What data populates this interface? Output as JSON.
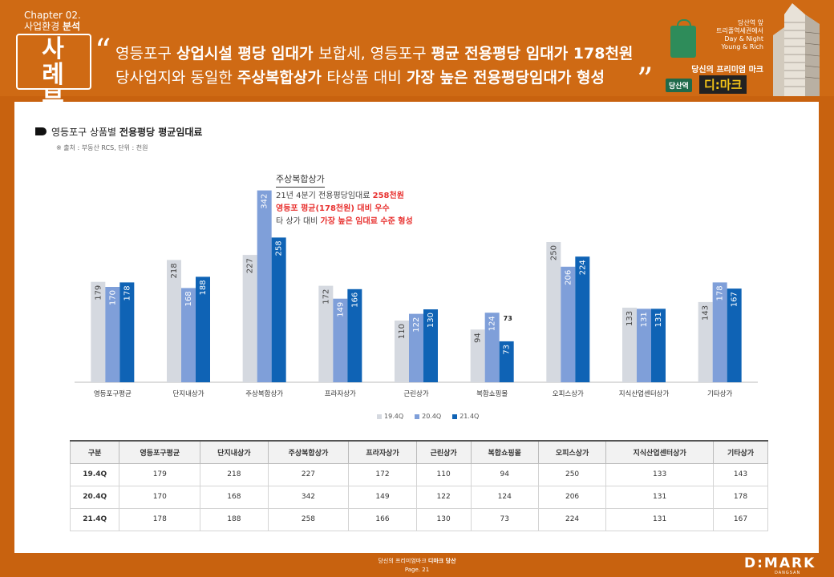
{
  "header": {
    "chapter": "Chapter 02.",
    "chapter_sub_prefix": "사업환경 ",
    "chapter_sub_bold": "분석",
    "case_label_1": "사 례",
    "case_label_2": "분 석",
    "headline": {
      "line1": [
        {
          "t": "영등포구 ",
          "b": false
        },
        {
          "t": "상업시설 평당 임대가 ",
          "b": true
        },
        {
          "t": "보합세, 영등포구 ",
          "b": false
        },
        {
          "t": "평균 전용평당 임대가 178천원",
          "b": true
        }
      ],
      "line2": [
        {
          "t": "당사업지와 동일한 ",
          "b": false
        },
        {
          "t": "주상복합상가 ",
          "b": true
        },
        {
          "t": "타상품 대비 ",
          "b": false
        },
        {
          "t": "가장 높은 전용평당임대가 형성",
          "b": true
        }
      ]
    },
    "brand": {
      "lines": [
        "당산역 앞",
        "트리플역세권에서",
        "Day & Night",
        "Young & Rich"
      ],
      "sub": "당신의 프리미엄 마크",
      "tag": "당산역",
      "mark": "디:마크"
    }
  },
  "section": {
    "title_prefix": "영등포구 상품별 ",
    "title_bold": "전용평당 평균임대료",
    "source": "※ 출처 : 부동산 RCS, 단위 : 천원"
  },
  "annotation": {
    "title": "주상복합상가",
    "line1_prefix": "21년 4분기 전용평당임대료 ",
    "line1_red": "258천원",
    "line2": "영등포 평균(178천원) 대비 우수",
    "line3_prefix": "타 상가 대비 ",
    "line3_red": "가장 높은 임대료 수준 형성"
  },
  "chart_data": {
    "type": "bar",
    "categories": [
      "영등포구평균",
      "단지내상가",
      "주상복합상가",
      "프라자상가",
      "근린상가",
      "복합쇼핑몰",
      "오피스상가",
      "지식산업센터상가",
      "기타상가"
    ],
    "series": [
      {
        "name": "19.4Q",
        "values": [
          179,
          218,
          227,
          172,
          110,
          94,
          250,
          133,
          143
        ],
        "color": "#d5d9e0"
      },
      {
        "name": "20.4Q",
        "values": [
          170,
          168,
          342,
          149,
          122,
          124,
          206,
          131,
          178
        ],
        "color": "#7f9fd9"
      },
      {
        "name": "21.4Q",
        "values": [
          178,
          188,
          258,
          166,
          130,
          73,
          224,
          131,
          167
        ],
        "color": "#0f63b5"
      }
    ],
    "extra_label": {
      "category": "복합쇼핑몰",
      "text": "73"
    },
    "ylim": [
      0,
      360
    ],
    "grid": false,
    "legend": "bottom-center"
  },
  "table": {
    "header": [
      "구분",
      "영등포구평균",
      "단지내상가",
      "주상복합상가",
      "프라자상가",
      "근린상가",
      "복합쇼핑몰",
      "오피스상가",
      "지식산업센터상가",
      "기타상가"
    ],
    "rows": [
      [
        "19.4Q",
        "179",
        "218",
        "227",
        "172",
        "110",
        "94",
        "250",
        "133",
        "143"
      ],
      [
        "20.4Q",
        "170",
        "168",
        "342",
        "149",
        "122",
        "124",
        "206",
        "131",
        "178"
      ],
      [
        "21.4Q",
        "178",
        "188",
        "258",
        "166",
        "130",
        "73",
        "224",
        "131",
        "167"
      ]
    ]
  },
  "footer": {
    "line1_prefix": "당신의 프리미엄마크 ",
    "line1_bold": "디마크 당산",
    "page": "Page. 21",
    "logo": "D:MARK",
    "logo_sub": "DANGSAN"
  }
}
